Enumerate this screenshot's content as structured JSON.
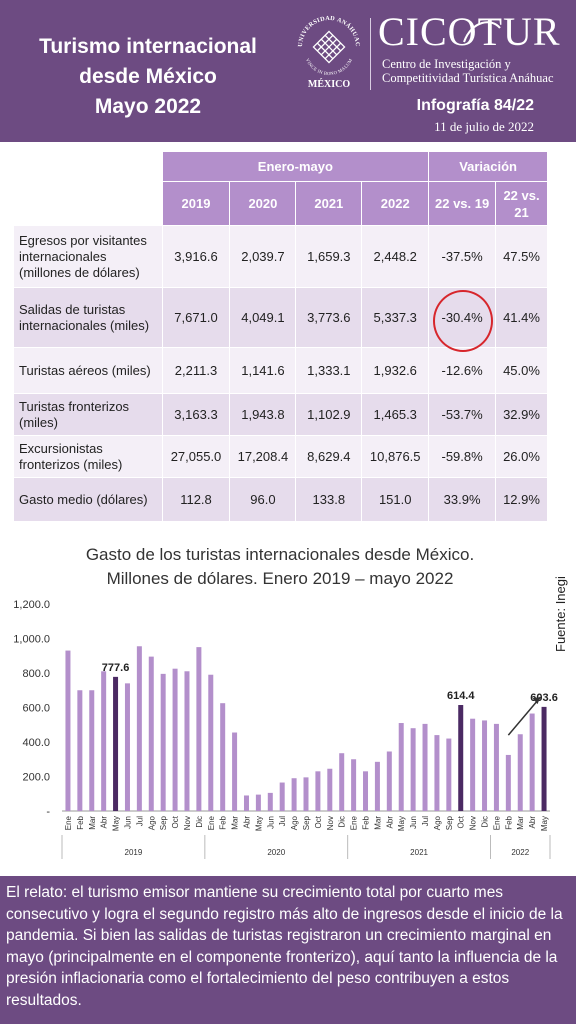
{
  "header": {
    "title_line1": "Turismo internacional",
    "title_line2": "desde México",
    "title_line3": "Mayo 2022",
    "university": "UNIVERSIDAD ANÁHUAC",
    "university_motto": "VINCE IN BONO MALUM",
    "university_city": "MÉXICO",
    "org_name": "CICOTUR",
    "org_sub1": "Centro de Investigación y",
    "org_sub2": "Competitividad Turística Anáhuac",
    "infografia": "Infografía 84/22",
    "date": "11 de julio de 2022"
  },
  "table": {
    "group_headers": [
      "Enero-mayo",
      "Variación"
    ],
    "columns": [
      "2019",
      "2020",
      "2021",
      "2022",
      "22 vs. 19",
      "22 vs. 21"
    ],
    "rows": [
      {
        "label": "Egresos por visitantes internacionales (millones de dólares)",
        "values": [
          "3,916.6",
          "2,039.7",
          "1,659.3",
          "2,448.2",
          "-37.5%",
          "47.5%"
        ]
      },
      {
        "label": "Salidas de turistas internacionales (miles)",
        "values": [
          "7,671.0",
          "4,049.1",
          "3,773.6",
          "5,337.3",
          "-30.4%",
          "41.4%"
        ]
      },
      {
        "label": "Turistas aéreos (miles)",
        "values": [
          "2,211.3",
          "1,141.6",
          "1,333.1",
          "1,932.6",
          "-12.6%",
          "45.0%"
        ]
      },
      {
        "label": "Turistas fronterizos (miles)",
        "values": [
          "3,163.3",
          "1,943.8",
          "1,102.9",
          "1,465.3",
          "-53.7%",
          "32.9%"
        ]
      },
      {
        "label": "Excursionistas fronterizos (miles)",
        "values": [
          "27,055.0",
          "17,208.4",
          "8,629.4",
          "10,876.5",
          "-59.8%",
          "26.0%"
        ]
      },
      {
        "label": "Gasto medio (dólares)",
        "values": [
          "112.8",
          "96.0",
          "133.8",
          "151.0",
          "33.9%",
          "12.9%"
        ]
      }
    ]
  },
  "chart_data": {
    "type": "bar",
    "title_line1": "Gasto de los turistas internacionales desde México.",
    "title_line2": "Millones de dólares. Enero 2019 – mayo 2022",
    "source": "Fuente: Inegi",
    "ylim": [
      0,
      1200
    ],
    "y_ticks": [
      "-",
      "200.0",
      "400.0",
      "600.0",
      "800.0",
      "1,000.0",
      "1,200.0"
    ],
    "categories": [
      "Ene",
      "Feb",
      "Mar",
      "Abr",
      "May",
      "Jun",
      "Jul",
      "Ago",
      "Sep",
      "Oct",
      "Nov",
      "Dic",
      "Ene",
      "Feb",
      "Mar",
      "Abr",
      "May",
      "Jun",
      "Jul",
      "Ago",
      "Sep",
      "Oct",
      "Nov",
      "Dic",
      "Ene",
      "Feb",
      "Mar",
      "Abr",
      "May",
      "Jun",
      "Jul",
      "Ago",
      "Sep",
      "Oct",
      "Nov",
      "Dic",
      "Ene",
      "Feb",
      "Mar",
      "Abr",
      "May"
    ],
    "years": [
      {
        "label": "2019",
        "count": 12
      },
      {
        "label": "2020",
        "count": 12
      },
      {
        "label": "2021",
        "count": 12
      },
      {
        "label": "2022",
        "count": 5
      }
    ],
    "values": [
      930,
      700,
      700,
      810,
      777.6,
      740,
      955,
      895,
      795,
      825,
      810,
      950,
      790,
      625,
      455,
      90,
      95,
      105,
      165,
      190,
      195,
      230,
      245,
      335,
      300,
      230,
      285,
      345,
      510,
      480,
      505,
      440,
      420,
      614.4,
      535,
      525,
      505,
      325,
      445,
      565,
      603.6
    ],
    "highlight_indices": [
      4,
      33,
      40
    ],
    "data_labels": [
      {
        "index": 4,
        "text": "777.6"
      },
      {
        "index": 33,
        "text": "614.4"
      },
      {
        "index": 40,
        "text": "603.6"
      }
    ],
    "colors": {
      "bar": "#b38fcb",
      "highlight": "#4b2a63"
    }
  },
  "footer": {
    "text": "El relato: el turismo emisor mantiene su crecimiento total por cuarto mes consecutivo y logra el segundo registro más alto de ingresos desde el inicio de la pandemia. Si bien las salidas de turistas registraron un crecimiento marginal en mayo (principalmente en el componente fronterizo), aquí tanto la influencia de la presión inflacionaria como el fortalecimiento del peso contribuyen a estos resultados."
  }
}
